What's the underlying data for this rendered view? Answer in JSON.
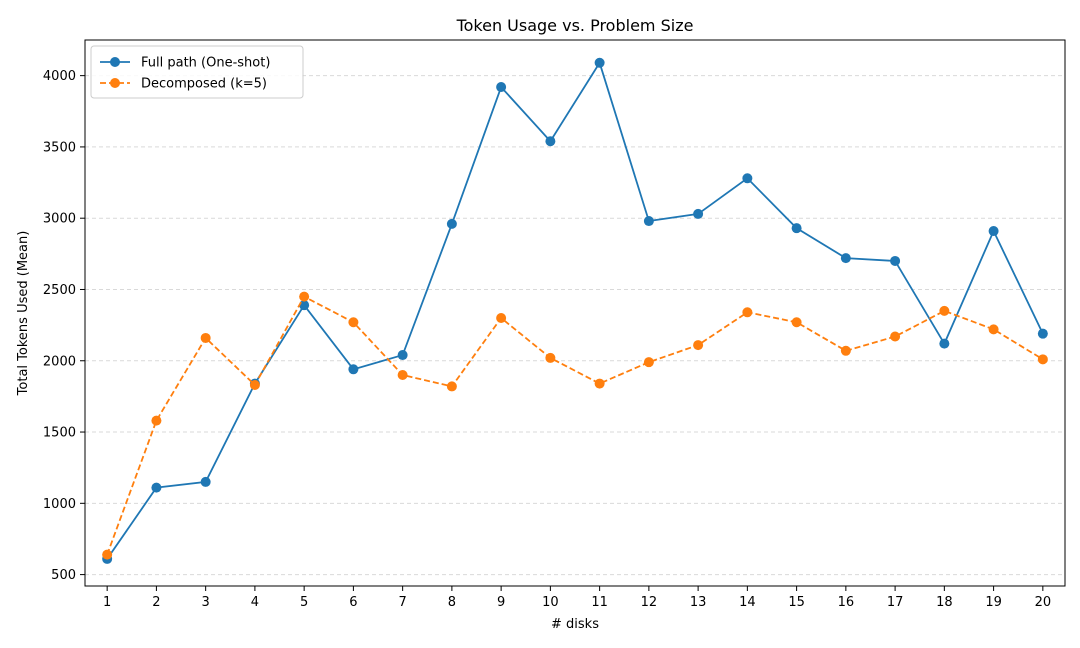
{
  "chart_data": {
    "type": "line",
    "title": "Token Usage vs. Problem Size",
    "xlabel": "# disks",
    "ylabel": "Total Tokens Used (Mean)",
    "x": [
      1,
      2,
      3,
      4,
      5,
      6,
      7,
      8,
      9,
      10,
      11,
      12,
      13,
      14,
      15,
      16,
      17,
      18,
      19,
      20
    ],
    "xlim": [
      0.55,
      20.45
    ],
    "ylim": [
      420,
      4250
    ],
    "yticks": [
      500,
      1000,
      1500,
      2000,
      2500,
      3000,
      3500,
      4000
    ],
    "grid": "horizontal dashed",
    "legend_position": "top-left",
    "series": [
      {
        "name": "Full path (One-shot)",
        "color": "#1f77b4",
        "linestyle": "solid",
        "marker": "circle",
        "values": [
          610,
          1110,
          1150,
          1840,
          2390,
          1940,
          2040,
          2960,
          3920,
          3540,
          4090,
          2980,
          3030,
          3280,
          2930,
          2720,
          2700,
          2120,
          2910,
          2190
        ]
      },
      {
        "name": "Decomposed (k=5)",
        "color": "#ff7f0e",
        "linestyle": "dashed",
        "marker": "circle",
        "values": [
          640,
          1580,
          2160,
          1830,
          2450,
          2270,
          1900,
          1820,
          2300,
          2020,
          1840,
          1990,
          2110,
          2340,
          2270,
          2070,
          2170,
          2350,
          2220,
          2010
        ]
      }
    ]
  }
}
